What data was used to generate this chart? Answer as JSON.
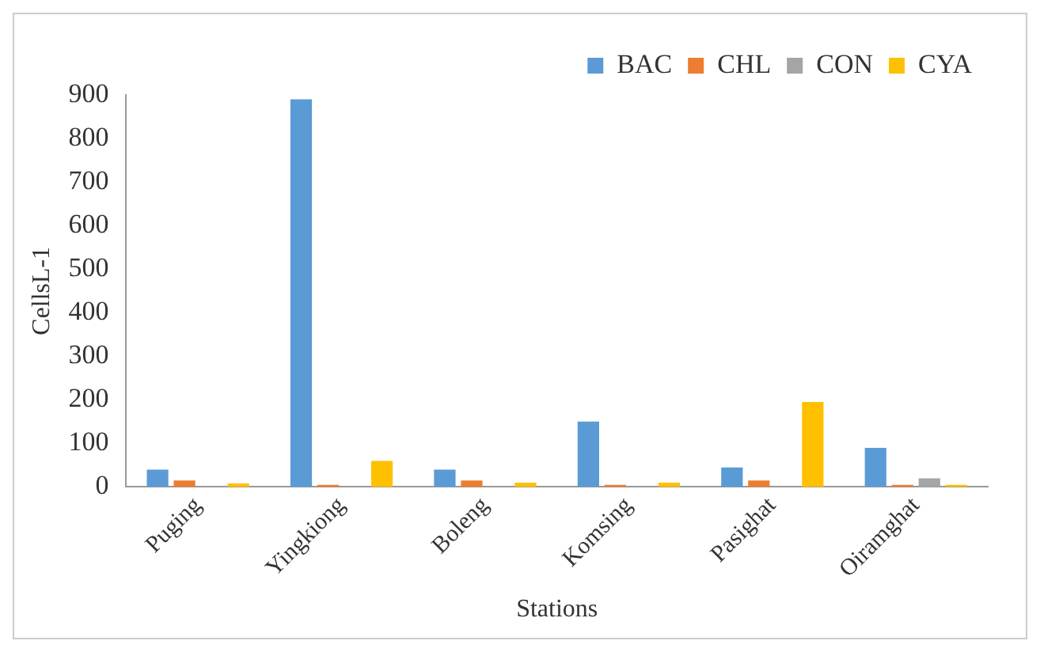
{
  "chart_data": {
    "type": "bar",
    "xlabel": "Stations",
    "ylabel": "CellsL-1",
    "categories": [
      "Puging",
      "Yingkiong",
      "Boleng",
      "Komsing",
      "Pasighat",
      "Oiramghat"
    ],
    "series": [
      {
        "name": "BAC",
        "color": "#5b9bd5",
        "values": [
          40,
          890,
          40,
          150,
          45,
          90
        ]
      },
      {
        "name": "CHL",
        "color": "#ed7d31",
        "values": [
          15,
          5,
          15,
          5,
          15,
          5
        ]
      },
      {
        "name": "CON",
        "color": "#a5a5a5",
        "values": [
          null,
          null,
          null,
          null,
          null,
          20
        ]
      },
      {
        "name": "CYA",
        "color": "#ffc000",
        "values": [
          8,
          60,
          10,
          10,
          195,
          5
        ]
      }
    ],
    "ylim": [
      0,
      900
    ],
    "yticks": [
      0,
      100,
      200,
      300,
      400,
      500,
      600,
      700,
      800,
      900
    ],
    "grid": false,
    "legend": "top right"
  }
}
